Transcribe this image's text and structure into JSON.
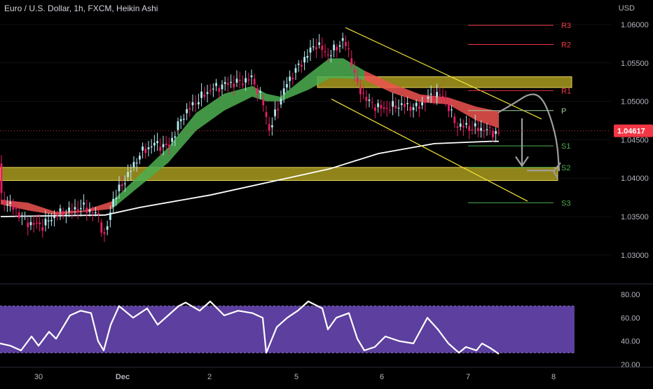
{
  "header": {
    "title": "Euro / U.S. Dollar, 1h, FXCM, Heikin Ashi",
    "currency": "USD",
    "last_price": "1.04617"
  },
  "colors": {
    "background": "#000000",
    "bull_candle": "#b2ebf2",
    "bear_candle": "#e91e63",
    "bull_cloud": "#4caf50",
    "bear_cloud": "#ef5350",
    "ma_line": "#ffffff",
    "channel": "#f5e43a",
    "zone": "#a89a1f",
    "rsi_band": "#5c3f9e",
    "price_tag": "#f23645",
    "pivot_resistance": "#f23645",
    "pivot_support": "#4caf50",
    "pivot_p": "#9fd3a3",
    "projection": "#9e9e9e"
  },
  "chart_data": [
    {
      "type": "candlestick",
      "chart_style": "Heikin Ashi",
      "y_axis": {
        "ticks": [
          "1.06000",
          "1.05500",
          "1.05000",
          "1.04500",
          "1.04000",
          "1.03500",
          "1.03000"
        ],
        "ylim": [
          1.0275,
          1.0625
        ]
      },
      "x_axis": {
        "ticks": [
          "30",
          "Dec",
          "2",
          "5",
          "6",
          "7",
          "8"
        ]
      },
      "last_price": 1.04617,
      "pivot_levels": [
        {
          "label": "R3",
          "value": 1.0599
        },
        {
          "label": "R2",
          "value": 1.0574
        },
        {
          "label": "R1",
          "value": 1.0514
        },
        {
          "label": "P",
          "value": 1.0488
        },
        {
          "label": "S1",
          "value": 1.0442
        },
        {
          "label": "S2",
          "value": 1.0414
        },
        {
          "label": "S3",
          "value": 1.0368
        }
      ],
      "zones": [
        {
          "from": 1.0518,
          "to": 1.0532
        },
        {
          "from": 1.0397,
          "to": 1.0414
        }
      ],
      "channel_lines": [
        {
          "from": {
            "x": "5",
            "y": 1.0596
          },
          "to": {
            "x": "7",
            "y": 1.0476
          }
        },
        {
          "from": {
            "x": "5",
            "y": 1.0503
          },
          "to": {
            "x": "7",
            "y": 1.0375
          }
        }
      ],
      "ma_line": [
        [
          1,
          1.035
        ],
        [
          150,
          1.0352
        ],
        [
          200,
          1.0362
        ],
        [
          300,
          1.0378
        ],
        [
          400,
          1.0398
        ],
        [
          470,
          1.0412
        ],
        [
          540,
          1.0432
        ],
        [
          620,
          1.0445
        ],
        [
          700,
          1.0448
        ],
        [
          712,
          1.0448
        ]
      ],
      "cloud": [
        [
          1,
          1.0372,
          1.0366
        ],
        [
          40,
          1.0368,
          1.0358
        ],
        [
          80,
          1.0356,
          1.0352
        ],
        [
          120,
          1.0358,
          1.0356
        ],
        [
          160,
          1.037,
          1.036
        ],
        [
          200,
          1.0405,
          1.039
        ],
        [
          240,
          1.044,
          1.042
        ],
        [
          280,
          1.0485,
          1.0462
        ],
        [
          320,
          1.051,
          1.0488
        ],
        [
          360,
          1.052,
          1.0506
        ],
        [
          380,
          1.051,
          1.05
        ],
        [
          400,
          1.0506,
          1.05
        ],
        [
          440,
          1.0535,
          1.0515
        ],
        [
          470,
          1.0556,
          1.053
        ],
        [
          490,
          1.0556,
          1.053
        ],
        [
          520,
          1.054,
          1.0528
        ],
        [
          560,
          1.0523,
          1.0511
        ],
        [
          600,
          1.0509,
          1.0499
        ],
        [
          640,
          1.0505,
          1.0496
        ],
        [
          680,
          1.0493,
          1.0475
        ],
        [
          712,
          1.0487,
          1.0465
        ]
      ],
      "price_path": [
        [
          1,
          1.0375
        ],
        [
          20,
          1.036
        ],
        [
          40,
          1.0342
        ],
        [
          60,
          1.0338
        ],
        [
          80,
          1.0352
        ],
        [
          100,
          1.0358
        ],
        [
          120,
          1.0362
        ],
        [
          140,
          1.0352
        ],
        [
          150,
          1.032
        ],
        [
          160,
          1.037
        ],
        [
          180,
          1.04
        ],
        [
          200,
          1.0432
        ],
        [
          220,
          1.0445
        ],
        [
          240,
          1.044
        ],
        [
          260,
          1.048
        ],
        [
          280,
          1.05
        ],
        [
          300,
          1.0515
        ],
        [
          320,
          1.0522
        ],
        [
          340,
          1.0525
        ],
        [
          360,
          1.053
        ],
        [
          375,
          1.05
        ],
        [
          385,
          1.046
        ],
        [
          395,
          1.049
        ],
        [
          410,
          1.0525
        ],
        [
          430,
          1.055
        ],
        [
          450,
          1.0575
        ],
        [
          470,
          1.056
        ],
        [
          490,
          1.058
        ],
        [
          500,
          1.056
        ],
        [
          510,
          1.052
        ],
        [
          525,
          1.05
        ],
        [
          545,
          1.049
        ],
        [
          570,
          1.0495
        ],
        [
          595,
          1.0492
        ],
        [
          620,
          1.051
        ],
        [
          635,
          1.0505
        ],
        [
          650,
          1.047
        ],
        [
          670,
          1.0466
        ],
        [
          690,
          1.0464
        ],
        [
          712,
          1.0458
        ]
      ],
      "projection_path": [
        [
          712,
          1.0486
        ],
        [
          735,
          1.0498
        ],
        [
          755,
          1.051
        ],
        [
          770,
          1.0508
        ],
        [
          782,
          1.049
        ],
        [
          795,
          1.045
        ],
        [
          798,
          1.041
        ]
      ],
      "projection_arrows": [
        {
          "x": 745,
          "y": 1.0418
        },
        {
          "x": 792,
          "y": 1.0406
        }
      ]
    },
    {
      "type": "line",
      "indicator": "RSI",
      "y_axis": {
        "ticks": [
          "80.00",
          "60.00",
          "40.00",
          "20.00"
        ],
        "ylim": [
          18,
          86
        ]
      },
      "band": [
        30,
        70
      ],
      "values": [
        [
          0,
          38
        ],
        [
          15,
          36
        ],
        [
          30,
          32
        ],
        [
          45,
          44
        ],
        [
          55,
          36
        ],
        [
          70,
          48
        ],
        [
          80,
          42
        ],
        [
          100,
          62
        ],
        [
          115,
          66
        ],
        [
          130,
          64
        ],
        [
          140,
          40
        ],
        [
          148,
          32
        ],
        [
          158,
          54
        ],
        [
          170,
          70
        ],
        [
          190,
          60
        ],
        [
          210,
          68
        ],
        [
          225,
          54
        ],
        [
          240,
          62
        ],
        [
          255,
          70
        ],
        [
          265,
          73
        ],
        [
          285,
          66
        ],
        [
          300,
          74
        ],
        [
          320,
          62
        ],
        [
          340,
          66
        ],
        [
          360,
          64
        ],
        [
          375,
          60
        ],
        [
          380,
          30
        ],
        [
          395,
          52
        ],
        [
          410,
          60
        ],
        [
          425,
          66
        ],
        [
          440,
          74
        ],
        [
          460,
          68
        ],
        [
          468,
          50
        ],
        [
          480,
          60
        ],
        [
          498,
          64
        ],
        [
          510,
          42
        ],
        [
          520,
          32
        ],
        [
          535,
          35
        ],
        [
          550,
          44
        ],
        [
          570,
          40
        ],
        [
          590,
          38
        ],
        [
          610,
          60
        ],
        [
          625,
          50
        ],
        [
          640,
          38
        ],
        [
          655,
          30
        ],
        [
          665,
          35
        ],
        [
          680,
          32
        ],
        [
          688,
          38
        ],
        [
          700,
          34
        ],
        [
          712,
          29
        ]
      ]
    }
  ]
}
